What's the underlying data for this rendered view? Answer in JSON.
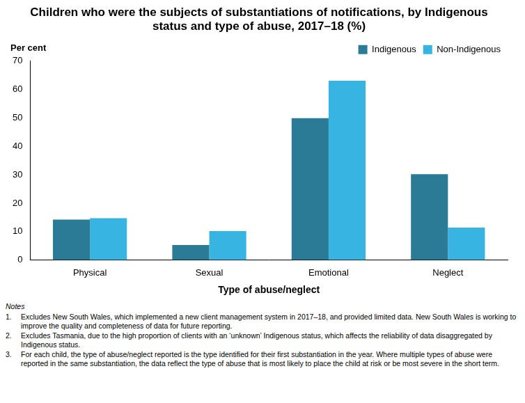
{
  "chart_data": {
    "type": "bar",
    "title": [
      "Children who were the subjects of substantiations of notifications, by Indigenous",
      "status and type of abuse, 2017–18 (%)"
    ],
    "y_label": "Per cent",
    "x_label": "Type of abuse/neglect",
    "categories": [
      "Physical",
      "Sexual",
      "Emotional",
      "Neglect"
    ],
    "series": [
      {
        "name": "Indigenous",
        "color": "#2b7b96",
        "values": [
          14.2,
          5.3,
          49.9,
          30.2
        ]
      },
      {
        "name": "Non-Indigenous",
        "color": "#37b4e2",
        "values": [
          14.7,
          10.2,
          63.1,
          11.4
        ]
      }
    ],
    "ylim": [
      0,
      70
    ],
    "yticks": [
      0,
      10,
      20,
      30,
      40,
      50,
      60,
      70
    ],
    "grid": false,
    "legend": "top-right"
  },
  "notes": {
    "heading": "Notes",
    "items": [
      {
        "number": "1.",
        "text": "Excludes New South Wales, which implemented a new client management system in 2017–18, and provided limited data. New South Wales is working to improve the quality and completeness of data for future reporting."
      },
      {
        "number": "2.",
        "text": "Excludes Tasmania, due to the high proportion of clients with an ‘unknown’ Indigenous status, which affects the reliability of data disaggregated by Indigenous status."
      },
      {
        "number": "3.",
        "text": "For each child, the type of abuse/neglect reported is the type identified for their first substantiation in the year. Where multiple types of abuse were reported in the same substantiation, the data reflect the type of abuse that is most likely to place the child at risk or be most severe in the short term."
      }
    ]
  }
}
